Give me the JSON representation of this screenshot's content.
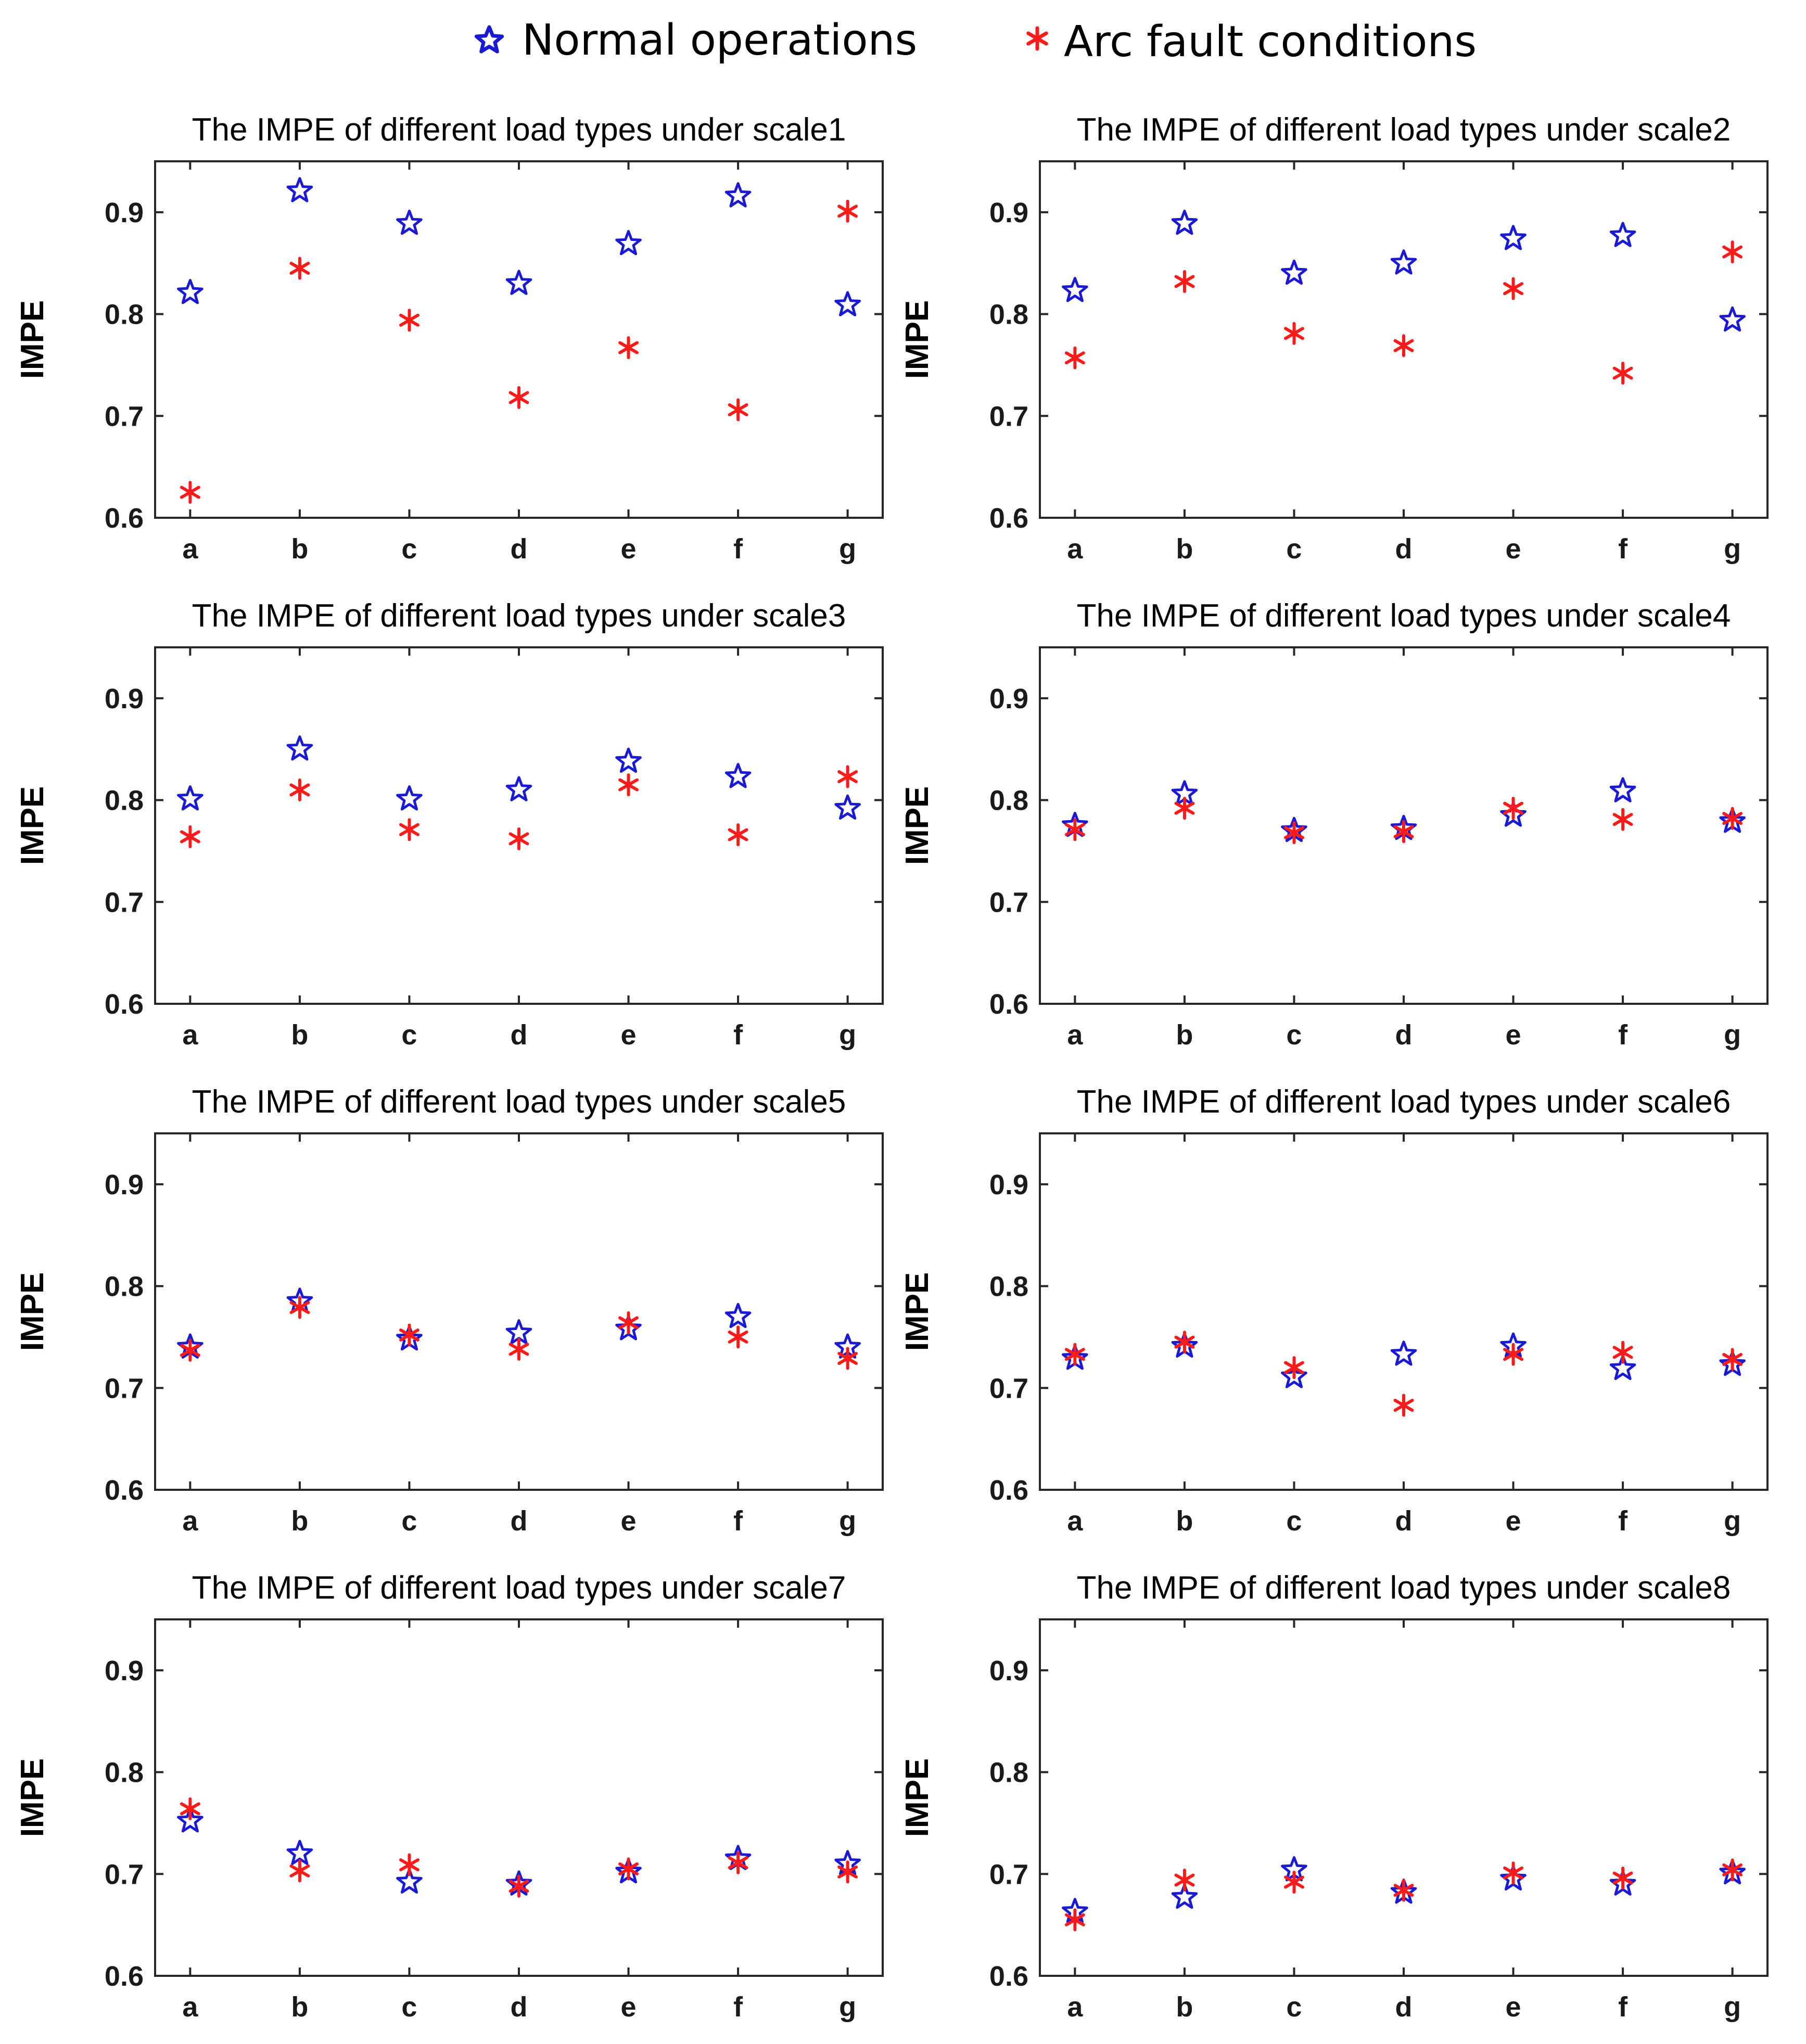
{
  "legend": [
    {
      "label": "Normal operations",
      "marker": "star-icon",
      "color": "#1a1ad4"
    },
    {
      "label": "Arc fault conditions",
      "marker": "asterisk-icon",
      "color": "#ff1a1a"
    }
  ],
  "chart_data": [
    {
      "type": "scatter",
      "title": "The IMPE of different load types under scale1",
      "ylabel": "IMPE",
      "categories": [
        "a",
        "b",
        "c",
        "d",
        "e",
        "f",
        "g"
      ],
      "yticks": [
        "0.6",
        "0.7",
        "0.8",
        "0.9"
      ],
      "ylim": [
        0.6,
        0.95
      ],
      "series": [
        {
          "name": "Normal operations",
          "values": [
            0.821,
            0.921,
            0.889,
            0.83,
            0.869,
            0.916,
            0.809
          ]
        },
        {
          "name": "Arc fault conditions",
          "values": [
            0.625,
            0.845,
            0.794,
            0.718,
            0.767,
            0.706,
            0.901
          ]
        }
      ]
    },
    {
      "type": "scatter",
      "title": "The IMPE of different load types under scale2",
      "ylabel": "IMPE",
      "categories": [
        "a",
        "b",
        "c",
        "d",
        "e",
        "f",
        "g"
      ],
      "yticks": [
        "0.6",
        "0.7",
        "0.8",
        "0.9"
      ],
      "ylim": [
        0.6,
        0.95
      ],
      "series": [
        {
          "name": "Normal operations",
          "values": [
            0.823,
            0.889,
            0.84,
            0.85,
            0.874,
            0.877,
            0.794
          ]
        },
        {
          "name": "Arc fault conditions",
          "values": [
            0.757,
            0.832,
            0.781,
            0.769,
            0.825,
            0.742,
            0.861
          ]
        }
      ]
    },
    {
      "type": "scatter",
      "title": "The IMPE of different load types under scale3",
      "ylabel": "IMPE",
      "categories": [
        "a",
        "b",
        "c",
        "d",
        "e",
        "f",
        "g"
      ],
      "yticks": [
        "0.6",
        "0.7",
        "0.8",
        "0.9"
      ],
      "ylim": [
        0.6,
        0.95
      ],
      "series": [
        {
          "name": "Normal operations",
          "values": [
            0.801,
            0.85,
            0.801,
            0.81,
            0.838,
            0.823,
            0.792
          ]
        },
        {
          "name": "Arc fault conditions",
          "values": [
            0.764,
            0.81,
            0.771,
            0.762,
            0.815,
            0.766,
            0.823
          ]
        }
      ]
    },
    {
      "type": "scatter",
      "title": "The IMPE of different load types under scale4",
      "ylabel": "IMPE",
      "categories": [
        "a",
        "b",
        "c",
        "d",
        "e",
        "f",
        "g"
      ],
      "yticks": [
        "0.6",
        "0.7",
        "0.8",
        "0.9"
      ],
      "ylim": [
        0.6,
        0.95
      ],
      "series": [
        {
          "name": "Normal operations",
          "values": [
            0.775,
            0.806,
            0.77,
            0.772,
            0.785,
            0.809,
            0.779
          ]
        },
        {
          "name": "Arc fault conditions",
          "values": [
            0.771,
            0.792,
            0.768,
            0.769,
            0.792,
            0.781,
            0.782
          ]
        }
      ]
    },
    {
      "type": "scatter",
      "title": "The IMPE of different load types under scale5",
      "ylabel": "IMPE",
      "categories": [
        "a",
        "b",
        "c",
        "d",
        "e",
        "f",
        "g"
      ],
      "yticks": [
        "0.6",
        "0.7",
        "0.8",
        "0.9"
      ],
      "ylim": [
        0.6,
        0.95
      ],
      "series": [
        {
          "name": "Normal operations",
          "values": [
            0.74,
            0.785,
            0.748,
            0.754,
            0.758,
            0.77,
            0.74
          ]
        },
        {
          "name": "Arc fault conditions",
          "values": [
            0.737,
            0.779,
            0.752,
            0.738,
            0.764,
            0.75,
            0.729
          ]
        }
      ]
    },
    {
      "type": "scatter",
      "title": "The IMPE of different load types under scale6",
      "ylabel": "IMPE",
      "categories": [
        "a",
        "b",
        "c",
        "d",
        "e",
        "f",
        "g"
      ],
      "yticks": [
        "0.6",
        "0.7",
        "0.8",
        "0.9"
      ],
      "ylim": [
        0.6,
        0.95
      ],
      "series": [
        {
          "name": "Normal operations",
          "values": [
            0.729,
            0.741,
            0.711,
            0.733,
            0.741,
            0.719,
            0.723
          ]
        },
        {
          "name": "Arc fault conditions",
          "values": [
            0.733,
            0.745,
            0.72,
            0.683,
            0.733,
            0.735,
            0.728
          ]
        }
      ]
    },
    {
      "type": "scatter",
      "title": "The IMPE of different load types under scale7",
      "ylabel": "IMPE",
      "categories": [
        "a",
        "b",
        "c",
        "d",
        "e",
        "f",
        "g"
      ],
      "yticks": [
        "0.6",
        "0.7",
        "0.8",
        "0.9"
      ],
      "ylim": [
        0.6,
        0.95
      ],
      "series": [
        {
          "name": "Normal operations",
          "values": [
            0.752,
            0.72,
            0.692,
            0.69,
            0.702,
            0.715,
            0.71
          ]
        },
        {
          "name": "Arc fault conditions",
          "values": [
            0.764,
            0.703,
            0.709,
            0.688,
            0.705,
            0.711,
            0.702
          ]
        }
      ]
    },
    {
      "type": "scatter",
      "title": "The IMPE of different load types under scale8",
      "ylabel": "IMPE",
      "categories": [
        "a",
        "b",
        "c",
        "d",
        "e",
        "f",
        "g"
      ],
      "yticks": [
        "0.6",
        "0.7",
        "0.8",
        "0.9"
      ],
      "ylim": [
        0.6,
        0.95
      ],
      "series": [
        {
          "name": "Normal operations",
          "values": [
            0.663,
            0.677,
            0.704,
            0.682,
            0.695,
            0.69,
            0.701
          ]
        },
        {
          "name": "Arc fault conditions",
          "values": [
            0.655,
            0.694,
            0.692,
            0.684,
            0.701,
            0.696,
            0.704
          ]
        }
      ]
    }
  ]
}
